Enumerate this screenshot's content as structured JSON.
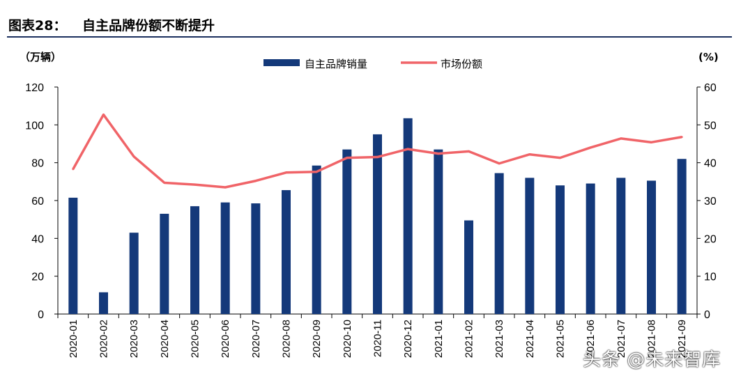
{
  "header": {
    "figure_label": "图表28：",
    "title": "自主品牌份额不断提升"
  },
  "watermark": "头条 @未来智库",
  "chart_data": {
    "type": "bar",
    "categories": [
      "2020-01",
      "2020-02",
      "2020-03",
      "2020-04",
      "2020-05",
      "2020-06",
      "2020-07",
      "2020-08",
      "2020-09",
      "2020-10",
      "2020-11",
      "2020-12",
      "2021-01",
      "2021-02",
      "2021-03",
      "2021-04",
      "2021-05",
      "2021-06",
      "2021-07",
      "2021-08",
      "2021-09"
    ],
    "series": [
      {
        "name": "自主品牌销量",
        "type": "bar",
        "axis": "left",
        "color": "#14397a",
        "values": [
          61.5,
          11.5,
          43,
          53,
          57,
          59,
          58.5,
          65.5,
          78.5,
          87,
          95,
          103.5,
          87,
          49.5,
          74.5,
          72,
          68,
          69,
          72,
          70.5,
          82
        ]
      },
      {
        "name": "市场份额",
        "type": "line",
        "axis": "right",
        "color": "#f06468",
        "values": [
          38.3,
          52.7,
          41.6,
          34.7,
          34.2,
          33.5,
          35.2,
          37.4,
          37.6,
          41.3,
          41.5,
          43.6,
          42.4,
          43,
          39.8,
          42.2,
          41.3,
          44,
          46.4,
          45.4,
          46.8
        ]
      }
    ],
    "left_axis": {
      "unit": "（万辆）",
      "ylim": [
        0,
        120
      ],
      "ticks": [
        0,
        20,
        40,
        60,
        80,
        100,
        120
      ]
    },
    "right_axis": {
      "unit": "(%)",
      "ylim": [
        0,
        60
      ],
      "ticks": [
        0,
        10,
        20,
        30,
        40,
        50,
        60
      ]
    },
    "legend_position": "top-center",
    "grid": false
  }
}
